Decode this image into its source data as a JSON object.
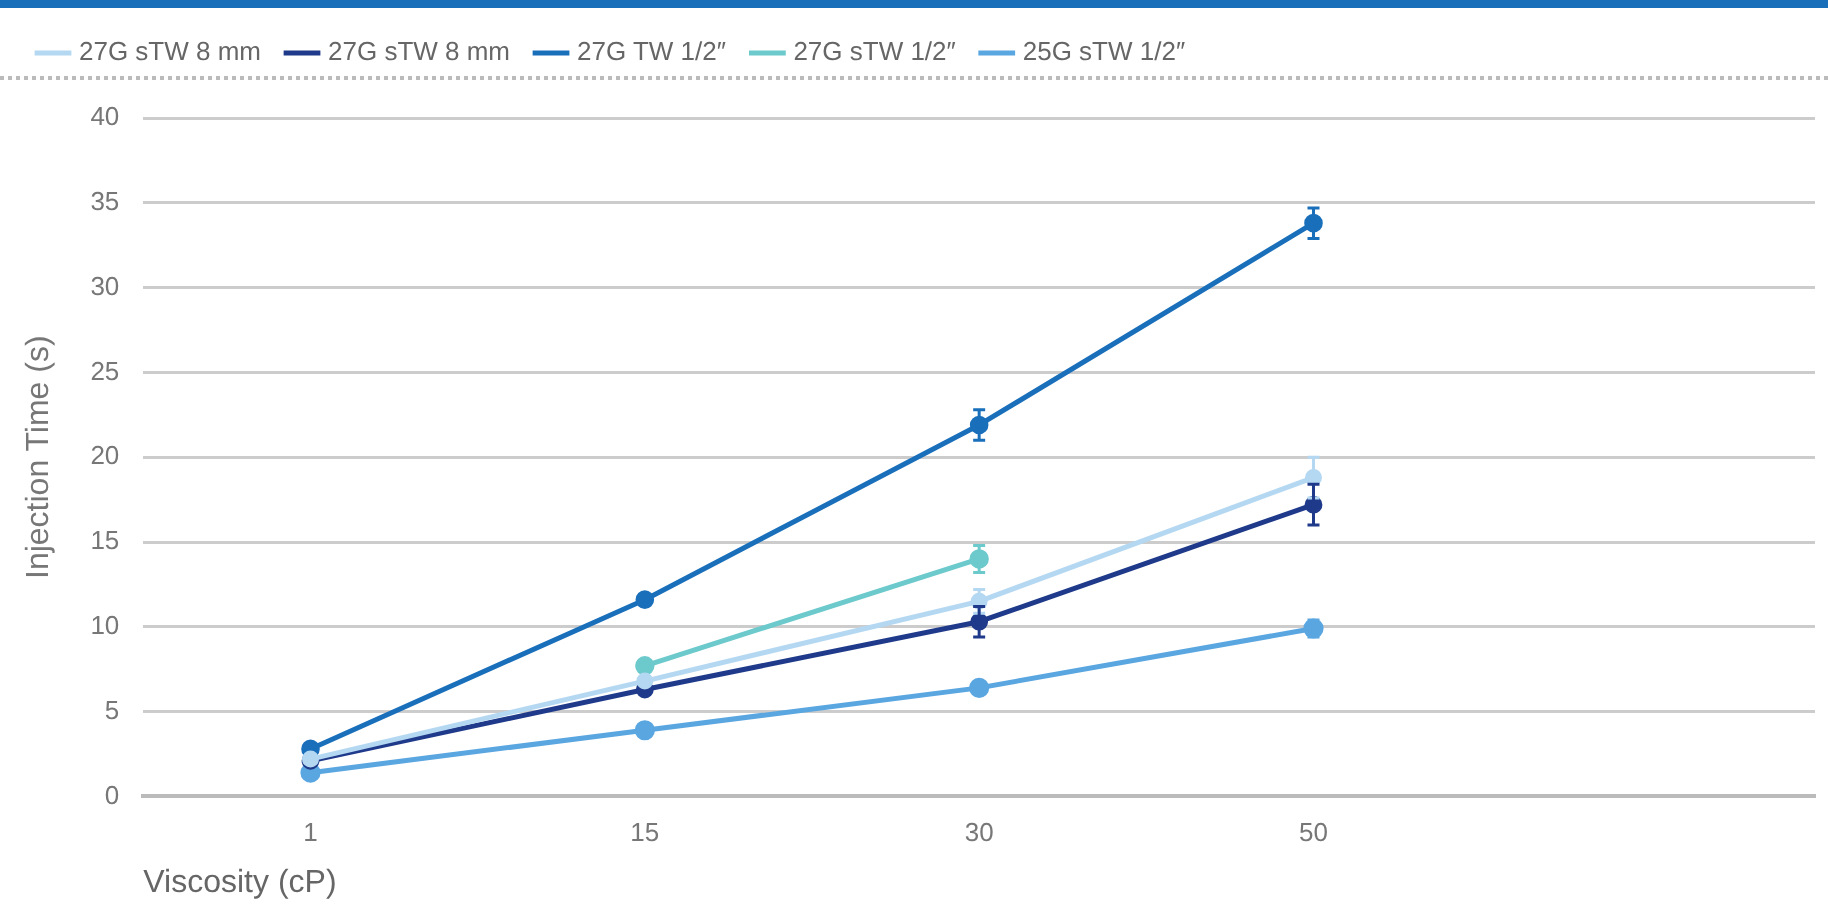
{
  "chart_data": {
    "type": "line",
    "xlabel": "Viscosity (cP)",
    "ylabel": "Injection Time (s)",
    "categories": [
      "1",
      "15",
      "30",
      "50",
      null
    ],
    "ylim": [
      0,
      40
    ],
    "yticks": [
      0,
      5,
      10,
      15,
      20,
      25,
      30,
      35,
      40
    ],
    "grid": "y",
    "legend": "top left",
    "marker": "circle",
    "line_style": "solid",
    "series": [
      {
        "name": "27G sTW 8 mm",
        "color": "#b5d8f2",
        "values": [
          2.2,
          6.8,
          11.5,
          18.8,
          null
        ],
        "errors": [
          null,
          null,
          0.7,
          1.2,
          null
        ]
      },
      {
        "name": "27G sTW 8 mm",
        "color": "#1f3a8a",
        "values": [
          2.1,
          6.3,
          10.3,
          17.2,
          null
        ],
        "errors": [
          null,
          null,
          0.9,
          1.2,
          null
        ]
      },
      {
        "name": "27G TW 1/2″",
        "color": "#1a6fbb",
        "values": [
          2.8,
          11.6,
          21.9,
          33.8,
          null
        ],
        "errors": [
          null,
          null,
          0.9,
          0.9,
          null
        ]
      },
      {
        "name": "27G sTW 1/2″",
        "color": "#6cc9cc",
        "values": [
          null,
          7.7,
          14.0,
          null,
          null
        ],
        "errors": [
          null,
          null,
          0.8,
          null,
          null
        ]
      },
      {
        "name": "25G sTW 1/2″",
        "color": "#5aa6e0",
        "values": [
          1.4,
          3.9,
          6.4,
          9.9,
          null
        ],
        "errors": [
          null,
          null,
          null,
          0.5,
          null
        ]
      }
    ]
  }
}
